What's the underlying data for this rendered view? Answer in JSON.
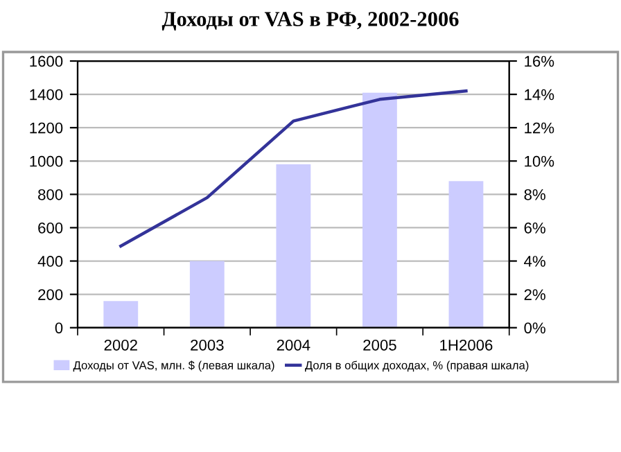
{
  "chart_data": {
    "type": "bar",
    "title": "Доходы от VAS в РФ, 2002-2006",
    "categories": [
      "2002",
      "2003",
      "2004",
      "2005",
      "1H2006"
    ],
    "series": [
      {
        "name": "Доходы от VAS, млн. $ (левая шкала)",
        "color": "#ccccff",
        "values": [
          160,
          400,
          980,
          1410,
          880
        ]
      },
      {
        "name": "Доля в общих доходах, % (правая шкала)",
        "type": "line",
        "axis": "y2",
        "color": "#333399",
        "values": [
          4.9,
          7.8,
          12.4,
          13.7,
          14.2
        ]
      }
    ],
    "ylim": [
      0,
      1600
    ],
    "yticks": [
      0,
      200,
      400,
      600,
      800,
      1000,
      1200,
      1400,
      1600
    ],
    "y2lim": [
      0,
      16
    ],
    "y2ticks": [
      {
        "value": 0,
        "label": "0%"
      },
      {
        "value": 2,
        "label": "2%"
      },
      {
        "value": 4,
        "label": "4%"
      },
      {
        "value": 6,
        "label": "6%"
      },
      {
        "value": 8,
        "label": "8%"
      },
      {
        "value": 10,
        "label": "10%"
      },
      {
        "value": 12,
        "label": "12%"
      },
      {
        "value": 14,
        "label": "14%"
      },
      {
        "value": 16,
        "label": "16%"
      }
    ],
    "grid": "y",
    "legend": "bottom",
    "marker": "none"
  }
}
